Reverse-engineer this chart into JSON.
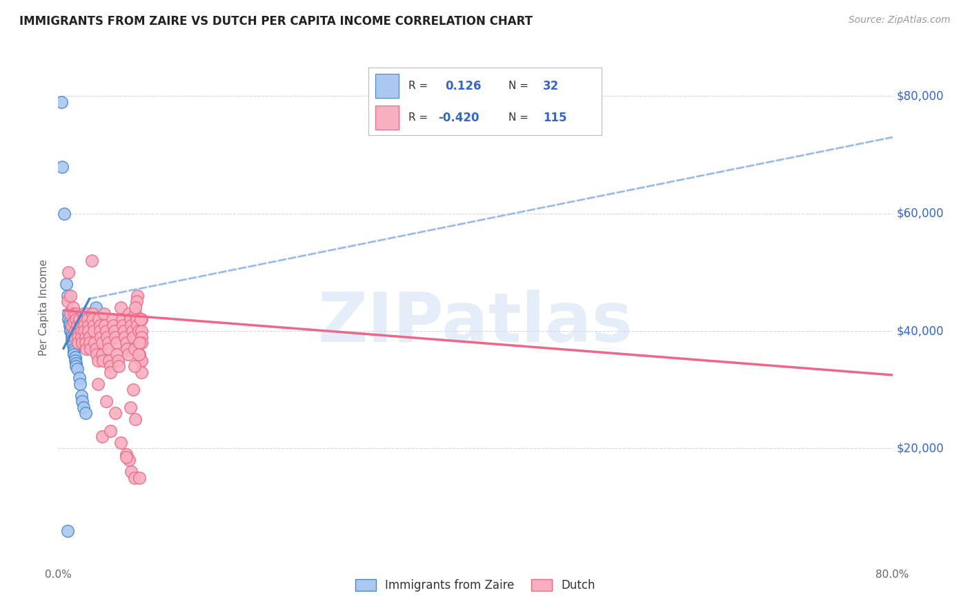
{
  "title": "IMMIGRANTS FROM ZAIRE VS DUTCH PER CAPITA INCOME CORRELATION CHART",
  "source": "Source: ZipAtlas.com",
  "ylabel": "Per Capita Income",
  "yticks": [
    20000,
    40000,
    60000,
    80000
  ],
  "ytick_labels": [
    "$20,000",
    "$40,000",
    "$60,000",
    "$80,000"
  ],
  "xlim": [
    0.0,
    0.8
  ],
  "ylim": [
    0,
    88000
  ],
  "color_blue": "#aac8f0",
  "color_pink": "#f8b0c0",
  "line_blue": "#4488cc",
  "line_pink": "#ee6688",
  "line_dash_color": "#99bbee",
  "text_blue": "#3366cc",
  "text_dark": "#444444",
  "watermark": "ZIPatlas",
  "blue_scatter": [
    [
      0.003,
      79000
    ],
    [
      0.004,
      68000
    ],
    [
      0.006,
      60000
    ],
    [
      0.008,
      48000
    ],
    [
      0.009,
      46000
    ],
    [
      0.01,
      43000
    ],
    [
      0.01,
      42000
    ],
    [
      0.011,
      41500
    ],
    [
      0.011,
      41000
    ],
    [
      0.012,
      40500
    ],
    [
      0.012,
      40000
    ],
    [
      0.013,
      39500
    ],
    [
      0.013,
      39000
    ],
    [
      0.013,
      38500
    ],
    [
      0.014,
      38000
    ],
    [
      0.014,
      37500
    ],
    [
      0.015,
      37000
    ],
    [
      0.015,
      36500
    ],
    [
      0.015,
      36000
    ],
    [
      0.016,
      35500
    ],
    [
      0.016,
      35000
    ],
    [
      0.017,
      34500
    ],
    [
      0.017,
      34000
    ],
    [
      0.018,
      33500
    ],
    [
      0.02,
      32000
    ],
    [
      0.021,
      31000
    ],
    [
      0.022,
      29000
    ],
    [
      0.023,
      28000
    ],
    [
      0.024,
      27000
    ],
    [
      0.026,
      26000
    ],
    [
      0.036,
      44000
    ],
    [
      0.009,
      6000
    ]
  ],
  "pink_scatter": [
    [
      0.009,
      45000
    ],
    [
      0.01,
      50000
    ],
    [
      0.012,
      46000
    ],
    [
      0.012,
      43000
    ],
    [
      0.013,
      41000
    ],
    [
      0.014,
      44000
    ],
    [
      0.015,
      43000
    ],
    [
      0.015,
      41500
    ],
    [
      0.016,
      40000
    ],
    [
      0.016,
      39000
    ],
    [
      0.017,
      43000
    ],
    [
      0.017,
      42000
    ],
    [
      0.018,
      41000
    ],
    [
      0.018,
      40000
    ],
    [
      0.019,
      39000
    ],
    [
      0.019,
      38000
    ],
    [
      0.02,
      42000
    ],
    [
      0.021,
      41000
    ],
    [
      0.022,
      40000
    ],
    [
      0.022,
      39000
    ],
    [
      0.023,
      38000
    ],
    [
      0.024,
      43000
    ],
    [
      0.024,
      42000
    ],
    [
      0.025,
      41000
    ],
    [
      0.025,
      40000
    ],
    [
      0.026,
      39000
    ],
    [
      0.026,
      38000
    ],
    [
      0.027,
      37000
    ],
    [
      0.028,
      43000
    ],
    [
      0.028,
      42000
    ],
    [
      0.029,
      41000
    ],
    [
      0.029,
      40000
    ],
    [
      0.03,
      39000
    ],
    [
      0.03,
      38000
    ],
    [
      0.031,
      37000
    ],
    [
      0.032,
      52000
    ],
    [
      0.033,
      43000
    ],
    [
      0.033,
      42000
    ],
    [
      0.034,
      41000
    ],
    [
      0.034,
      40000
    ],
    [
      0.035,
      38000
    ],
    [
      0.036,
      37000
    ],
    [
      0.037,
      36000
    ],
    [
      0.038,
      35000
    ],
    [
      0.039,
      42000
    ],
    [
      0.04,
      41000
    ],
    [
      0.04,
      40000
    ],
    [
      0.041,
      39000
    ],
    [
      0.042,
      38000
    ],
    [
      0.042,
      36000
    ],
    [
      0.043,
      35000
    ],
    [
      0.044,
      43000
    ],
    [
      0.045,
      41000
    ],
    [
      0.046,
      40000
    ],
    [
      0.047,
      39000
    ],
    [
      0.048,
      38000
    ],
    [
      0.048,
      37000
    ],
    [
      0.049,
      35000
    ],
    [
      0.05,
      34000
    ],
    [
      0.05,
      33000
    ],
    [
      0.052,
      42000
    ],
    [
      0.053,
      41000
    ],
    [
      0.054,
      40000
    ],
    [
      0.055,
      39000
    ],
    [
      0.056,
      38000
    ],
    [
      0.056,
      36000
    ],
    [
      0.057,
      35000
    ],
    [
      0.058,
      34000
    ],
    [
      0.06,
      44000
    ],
    [
      0.061,
      42000
    ],
    [
      0.062,
      41000
    ],
    [
      0.063,
      40000
    ],
    [
      0.064,
      39000
    ],
    [
      0.065,
      38000
    ],
    [
      0.066,
      37000
    ],
    [
      0.067,
      36000
    ],
    [
      0.068,
      43000
    ],
    [
      0.069,
      42000
    ],
    [
      0.07,
      41000
    ],
    [
      0.071,
      40000
    ],
    [
      0.072,
      39000
    ],
    [
      0.073,
      37000
    ],
    [
      0.074,
      43000
    ],
    [
      0.075,
      42000
    ],
    [
      0.076,
      41000
    ],
    [
      0.077,
      40000
    ],
    [
      0.078,
      38000
    ],
    [
      0.078,
      36000
    ],
    [
      0.079,
      35000
    ],
    [
      0.08,
      42000
    ],
    [
      0.08,
      40000
    ],
    [
      0.08,
      39000
    ],
    [
      0.08,
      38000
    ],
    [
      0.08,
      35000
    ],
    [
      0.08,
      33000
    ],
    [
      0.079,
      42000
    ],
    [
      0.078,
      38000
    ],
    [
      0.077,
      36000
    ],
    [
      0.076,
      46000
    ],
    [
      0.075,
      45000
    ],
    [
      0.074,
      44000
    ],
    [
      0.073,
      34000
    ],
    [
      0.072,
      30000
    ],
    [
      0.065,
      19000
    ],
    [
      0.068,
      18000
    ],
    [
      0.07,
      16000
    ],
    [
      0.073,
      15000
    ],
    [
      0.078,
      15000
    ],
    [
      0.074,
      25000
    ],
    [
      0.069,
      27000
    ],
    [
      0.042,
      22000
    ],
    [
      0.046,
      28000
    ],
    [
      0.038,
      31000
    ],
    [
      0.06,
      21000
    ],
    [
      0.065,
      18500
    ],
    [
      0.05,
      23000
    ],
    [
      0.055,
      26000
    ]
  ],
  "blue_line_solid": [
    [
      0.005,
      37000
    ],
    [
      0.03,
      45500
    ]
  ],
  "blue_line_dash": [
    [
      0.03,
      45500
    ],
    [
      0.8,
      73000
    ]
  ],
  "pink_line": [
    [
      0.005,
      43500
    ],
    [
      0.8,
      32500
    ]
  ],
  "background_color": "#ffffff",
  "grid_color": "#cccccc"
}
